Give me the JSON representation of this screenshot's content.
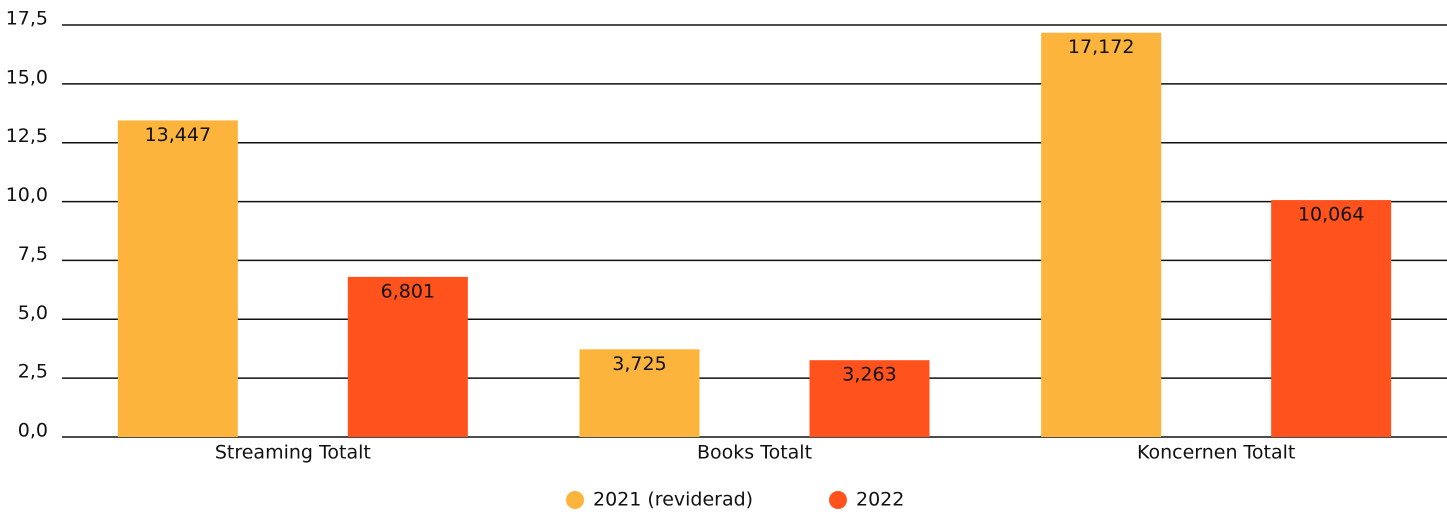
{
  "chart_data": {
    "type": "bar",
    "categories": [
      "Streaming Totalt",
      "Books Totalt",
      "Koncernen Totalt"
    ],
    "series": [
      {
        "name": "2021 (reviderad)",
        "color": "#fdb43c",
        "values": [
          13.447,
          3.725,
          17.172
        ],
        "value_labels": [
          "13,447",
          "3,725",
          "17,172"
        ]
      },
      {
        "name": "2022",
        "color": "#ff521d",
        "values": [
          6.801,
          3.263,
          10.064
        ],
        "value_labels": [
          "6,801",
          "3,263",
          "10,064"
        ]
      }
    ],
    "ylim": [
      0,
      17.5
    ],
    "yticks": [
      {
        "value": 0,
        "label": "0,0"
      },
      {
        "value": 2.5,
        "label": "2,5"
      },
      {
        "value": 5,
        "label": "5,0"
      },
      {
        "value": 7.5,
        "label": "7,5"
      },
      {
        "value": 10,
        "label": "10,0"
      },
      {
        "value": 12.5,
        "label": "12,5"
      },
      {
        "value": 15,
        "label": "15,0"
      },
      {
        "value": 17.5,
        "label": "17,5"
      }
    ],
    "grid": true,
    "legend": "bottom"
  }
}
